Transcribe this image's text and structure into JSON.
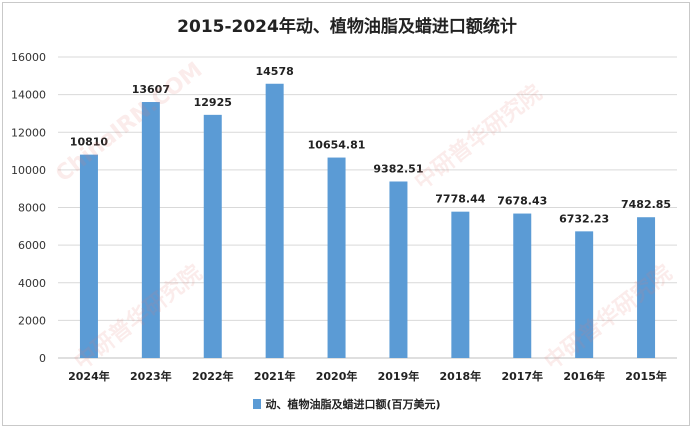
{
  "chart_data": {
    "type": "bar",
    "title": "2015-2024年动、植物油脂及蜡进口额统计",
    "categories": [
      "2024年",
      "2023年",
      "2022年",
      "2021年",
      "2020年",
      "2019年",
      "2018年",
      "2017年",
      "2016年",
      "2015年"
    ],
    "series": [
      {
        "name": "动、植物油脂及蜡进口额(百万美元)",
        "values": [
          10810,
          13607,
          12925,
          14578,
          10654.81,
          9382.51,
          7778.44,
          7678.43,
          6732.23,
          7482.85
        ],
        "labels": [
          "10810",
          "13607",
          "12925",
          "14578",
          "10654.81",
          "9382.51",
          "7778.44",
          "7678.43",
          "6732.23",
          "7482.85"
        ],
        "color": "#5b9bd5"
      }
    ],
    "ylim": [
      0,
      16000
    ],
    "yticks": [
      "0",
      "2000",
      "4000",
      "6000",
      "8000",
      "10000",
      "12000",
      "14000",
      "16000"
    ],
    "ytick_values": [
      0,
      2000,
      4000,
      6000,
      8000,
      10000,
      12000,
      14000,
      16000
    ],
    "grid": true,
    "legend": "bottom"
  },
  "watermark": {
    "text_cn": "中研普华研究院",
    "text_en": "ChinaIRN.COM"
  }
}
